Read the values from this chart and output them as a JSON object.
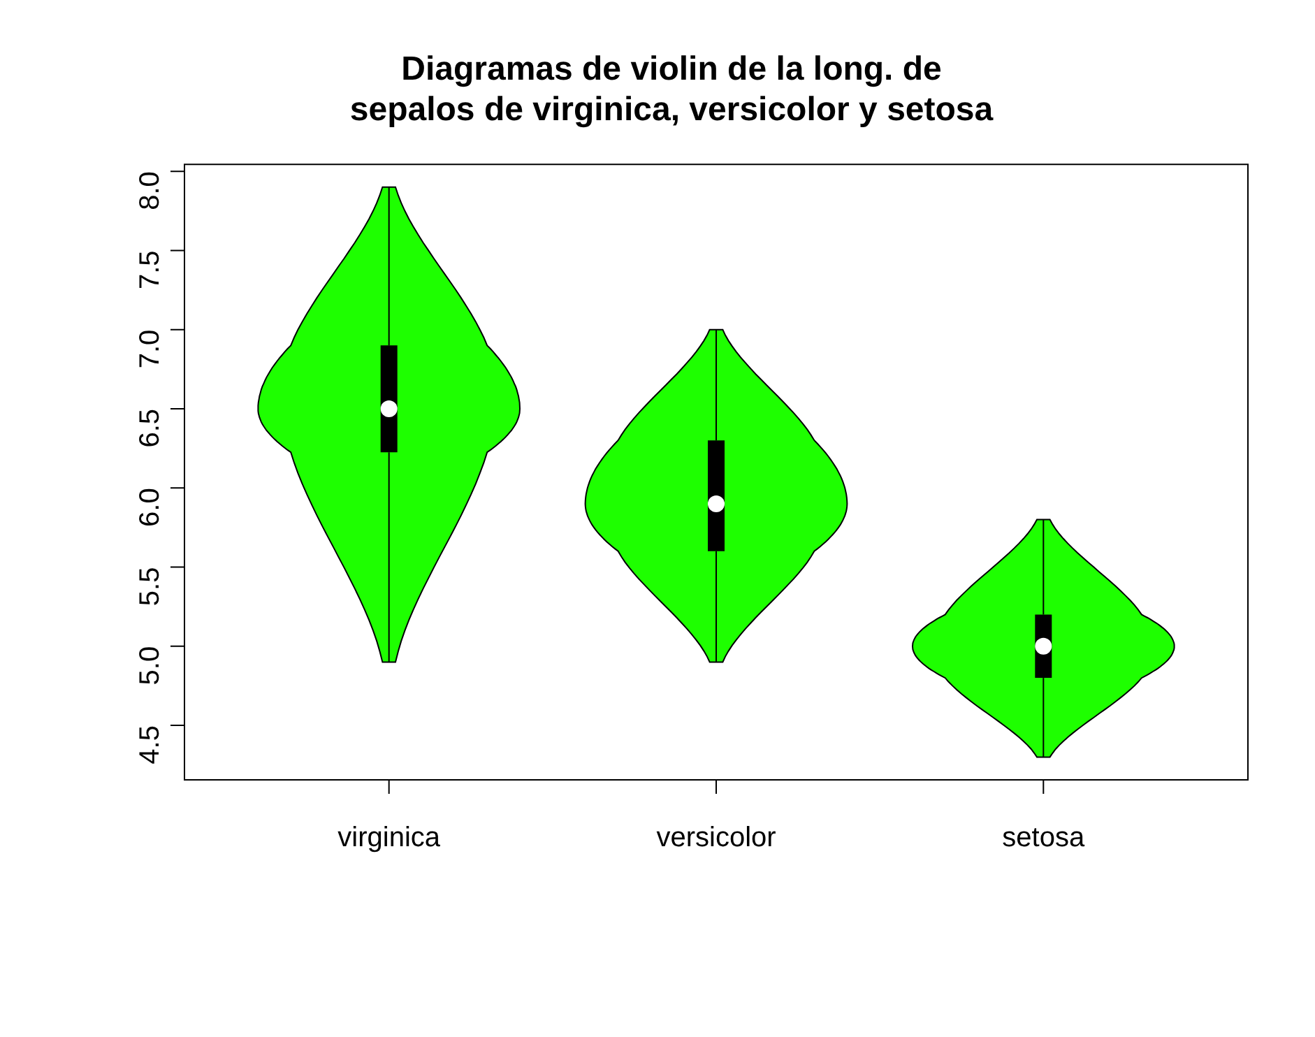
{
  "chart_data": {
    "type": "box",
    "title": "Diagramas de violin de la long. de\nsepalos de virginica, versicolor y setosa",
    "categories": [
      "virginica",
      "versicolor",
      "setosa"
    ],
    "series": [
      {
        "color": "#000000",
        "boxes": [
          {
            "low": 4.9,
            "q1": 6.225,
            "median": 6.5,
            "q3": 6.9,
            "high": 7.9
          },
          {
            "low": 4.9,
            "q1": 5.6,
            "median": 5.9,
            "q3": 6.3,
            "high": 7.0
          },
          {
            "low": 4.3,
            "q1": 4.8,
            "median": 5.0,
            "q3": 5.2,
            "high": 5.8
          }
        ]
      }
    ],
    "ylim": [
      4.156,
      8.044
    ],
    "yticks": [
      4.5,
      {
        "value": 5,
        "label": "5.0"
      },
      5.5,
      {
        "value": 6,
        "label": "6.0"
      },
      6.5,
      {
        "value": 7,
        "label": "7.0"
      },
      7.5,
      {
        "value": 8,
        "label": "8.0"
      }
    ],
    "grid": false,
    "legend": false
  }
}
